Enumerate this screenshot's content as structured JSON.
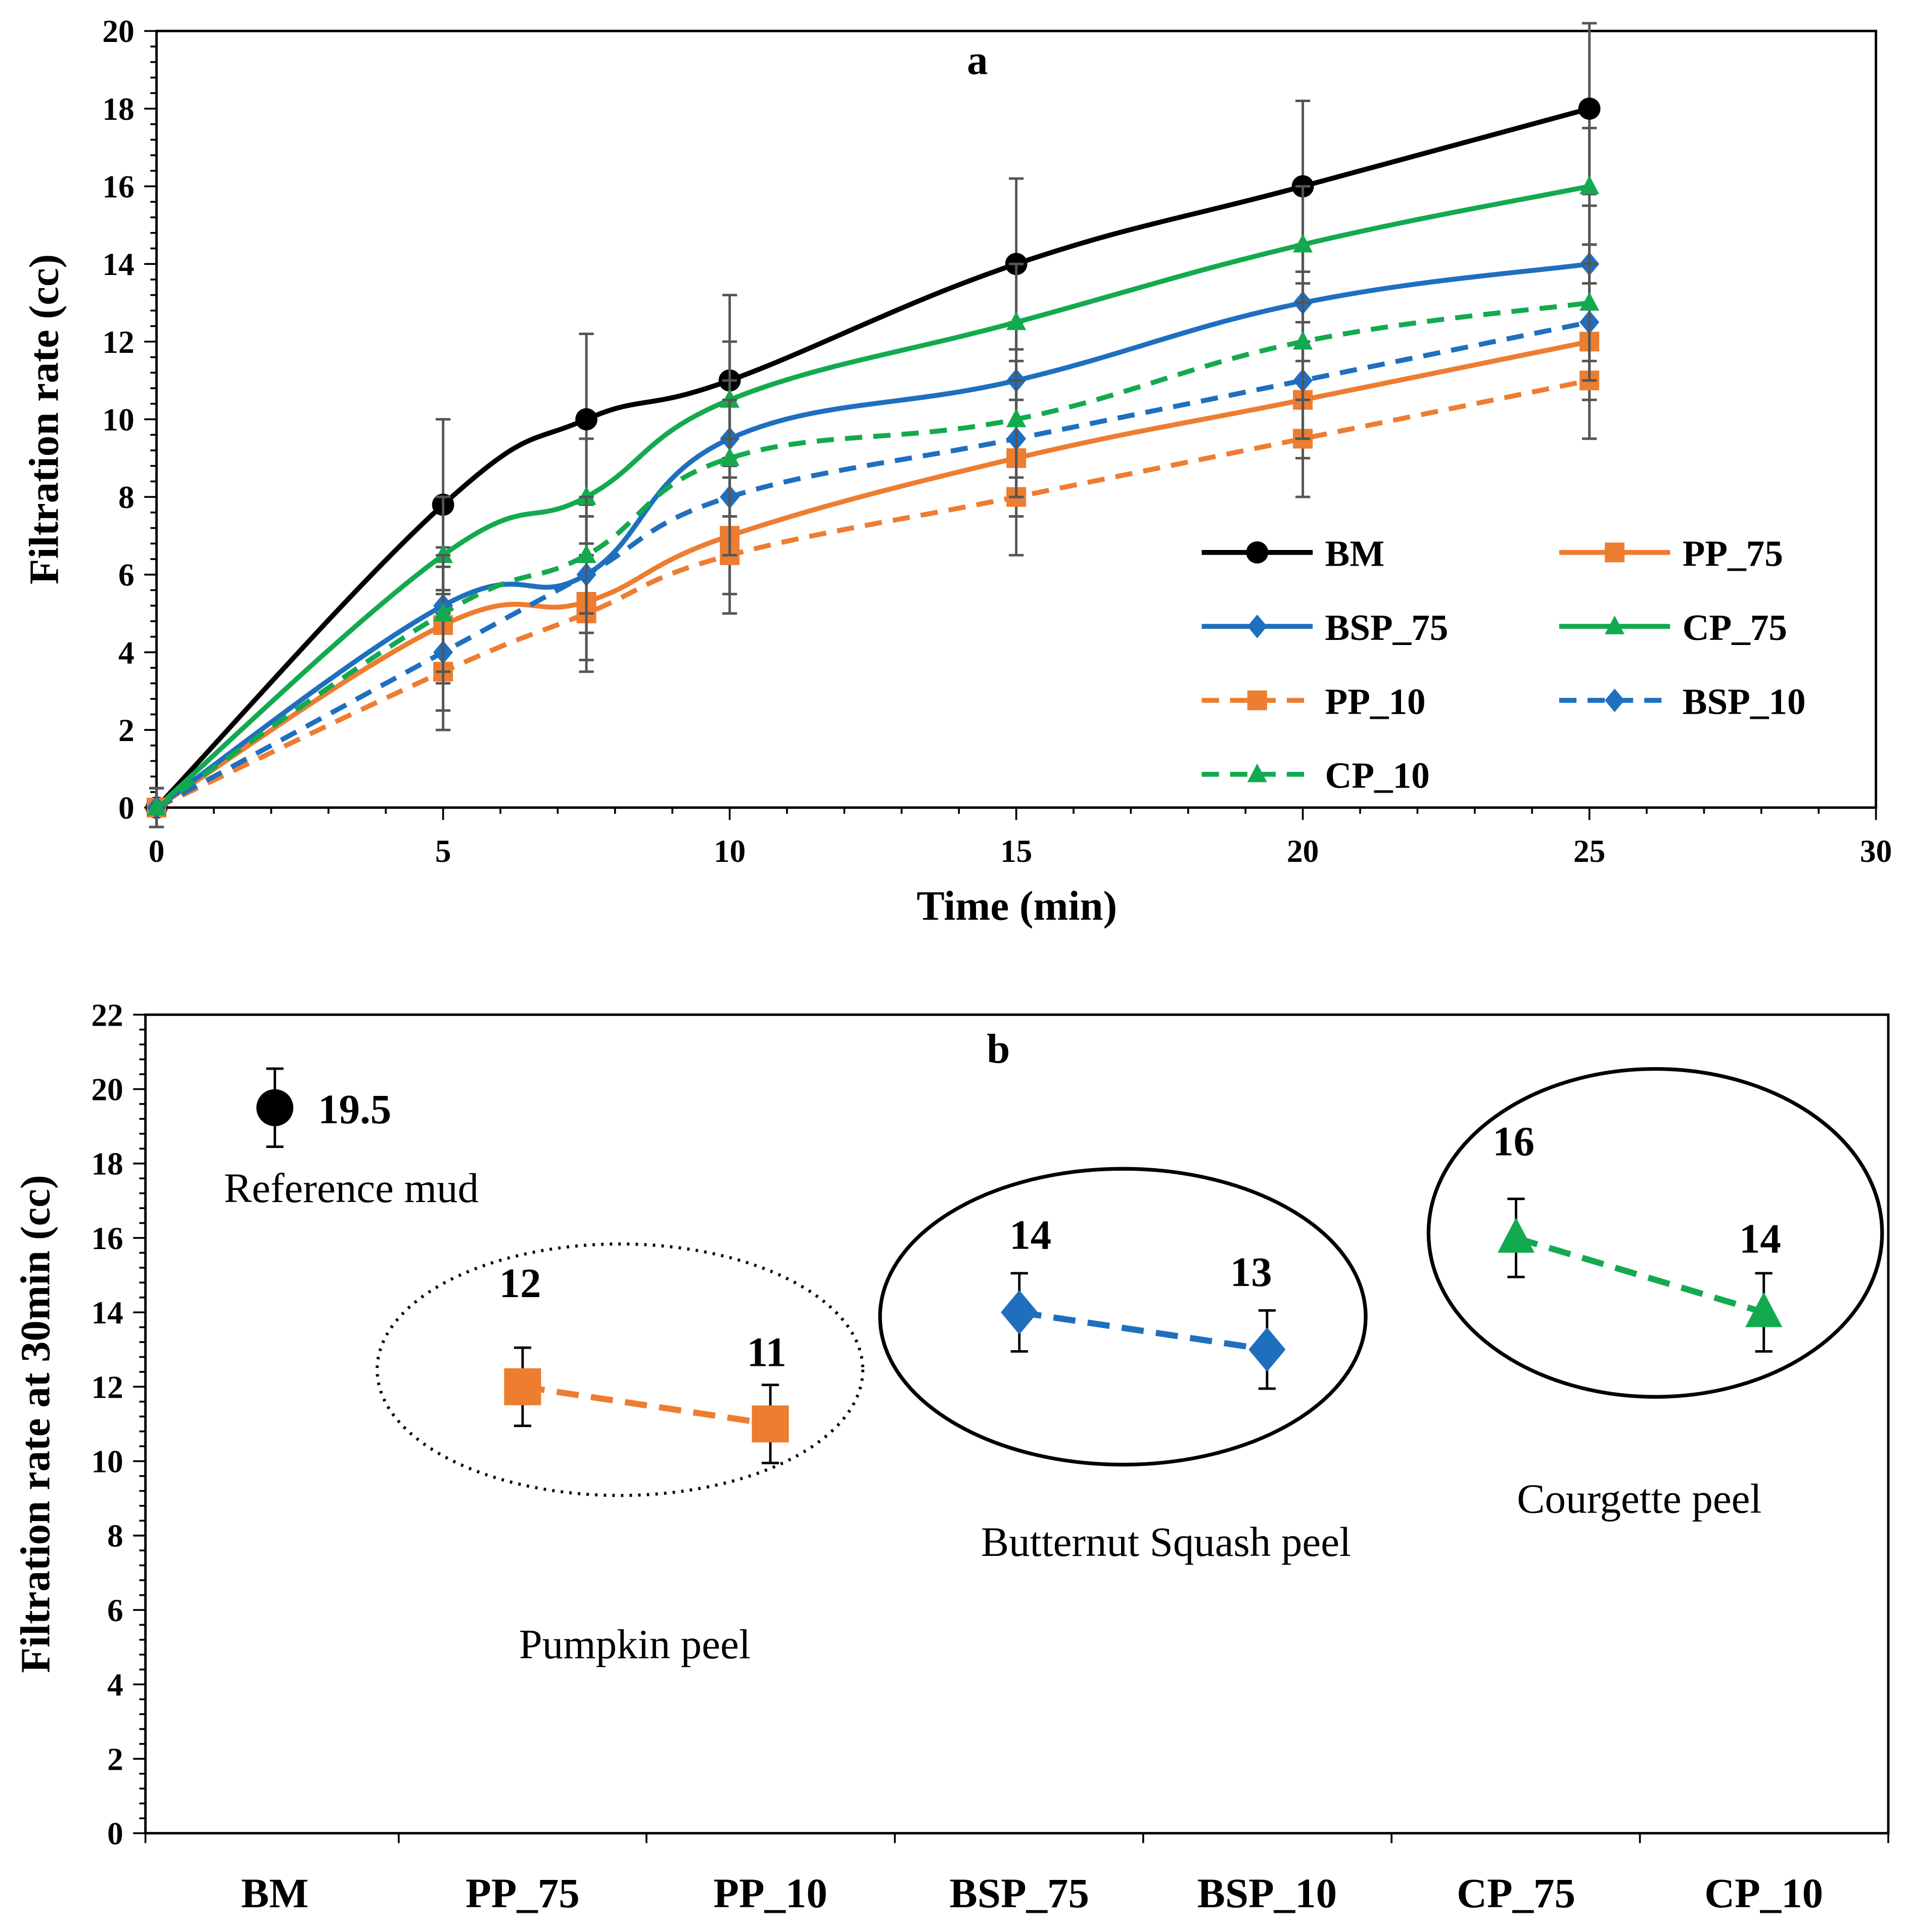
{
  "chart_data": [
    {
      "type": "line",
      "title": "a",
      "xlabel": "Time (min)",
      "ylabel": "Filtration rate (cc)",
      "xlim": [
        0,
        30
      ],
      "ylim": [
        0,
        20
      ],
      "xticks": [
        0,
        5,
        10,
        15,
        20,
        25,
        30
      ],
      "yticks": [
        0,
        2,
        4,
        6,
        8,
        10,
        12,
        14,
        16,
        18,
        20
      ],
      "x": [
        0,
        5,
        7.5,
        10,
        15,
        20,
        25
      ],
      "legend_position": "lower-right",
      "series": [
        {
          "name": "BM",
          "values": [
            0,
            7.8,
            10,
            11,
            14,
            16,
            18
          ],
          "error": [
            0.5,
            2.2,
            2.2,
            2.2,
            2.2,
            2.2,
            2.2
          ],
          "color": "#000000",
          "dash": false,
          "marker": "circle"
        },
        {
          "name": "PP_75",
          "values": [
            0,
            4.7,
            5.3,
            7,
            9,
            10.5,
            12
          ],
          "error": [
            0.5,
            1.5,
            1.5,
            1.5,
            1.5,
            1.5,
            1.5
          ],
          "color": "#ED7D31",
          "dash": false,
          "marker": "square"
        },
        {
          "name": "BSP_75",
          "values": [
            0,
            5.2,
            6,
            9.5,
            11,
            13,
            14
          ],
          "error": [
            0.5,
            1.5,
            1.5,
            1.5,
            1.5,
            1.5,
            1.5
          ],
          "color": "#1F6FBF",
          "dash": false,
          "marker": "diamond"
        },
        {
          "name": "CP_75",
          "values": [
            0,
            6.5,
            8,
            10.5,
            12.5,
            14.5,
            16
          ],
          "error": [
            0.5,
            1.5,
            1.5,
            1.5,
            1.5,
            1.5,
            1.5
          ],
          "color": "#13AA4F",
          "dash": false,
          "marker": "triangle"
        },
        {
          "name": "PP_10",
          "values": [
            0,
            3.5,
            5,
            6.5,
            8,
            9.5,
            11
          ],
          "error": [
            0.5,
            1.5,
            1.5,
            1.5,
            1.5,
            1.5,
            1.5
          ],
          "color": "#ED7D31",
          "dash": true,
          "marker": "square"
        },
        {
          "name": "BSP_10",
          "values": [
            0,
            4,
            6,
            8,
            9.5,
            11,
            12.5
          ],
          "error": [
            0.5,
            1.5,
            1.5,
            1.5,
            1.5,
            1.5,
            1.5
          ],
          "color": "#1F6FBF",
          "dash": true,
          "marker": "diamond"
        },
        {
          "name": "CP_10",
          "values": [
            0,
            5,
            6.5,
            9,
            10,
            12,
            13
          ],
          "error": [
            0.5,
            1.5,
            1.5,
            1.5,
            1.5,
            1.5,
            1.5
          ],
          "color": "#13AA4F",
          "dash": true,
          "marker": "triangle"
        }
      ]
    },
    {
      "type": "scatter",
      "title": "b",
      "xlabel": "",
      "ylabel": "Filtration rate at 30min  (cc)",
      "ylim": [
        0,
        22
      ],
      "yticks": [
        0,
        2,
        4,
        6,
        8,
        10,
        12,
        14,
        16,
        18,
        20,
        22
      ],
      "categories": [
        "BM",
        "PP_75",
        "PP_10",
        "BSP_75",
        "BSP_10",
        "CP_75",
        "CP_10"
      ],
      "values": [
        19.5,
        12,
        11,
        14,
        13,
        16,
        14
      ],
      "value_labels": [
        "19.5",
        "12",
        "11",
        "14",
        "13",
        "16",
        "14"
      ],
      "error": [
        1.05,
        1.05,
        1.05,
        1.05,
        1.05,
        1.05,
        1.05
      ],
      "groups": [
        {
          "label": "Reference mud",
          "members": [
            "BM"
          ]
        },
        {
          "label": "Pumpkin peel",
          "members": [
            "PP_75",
            "PP_10"
          ],
          "color": "#ED7D31"
        },
        {
          "label": "Butternut Squash peel",
          "members": [
            "BSP_75",
            "BSP_10"
          ],
          "color": "#1F6FBF"
        },
        {
          "label": "Courgette peel",
          "members": [
            "CP_75",
            "CP_10"
          ],
          "color": "#13AA4F"
        }
      ]
    }
  ]
}
